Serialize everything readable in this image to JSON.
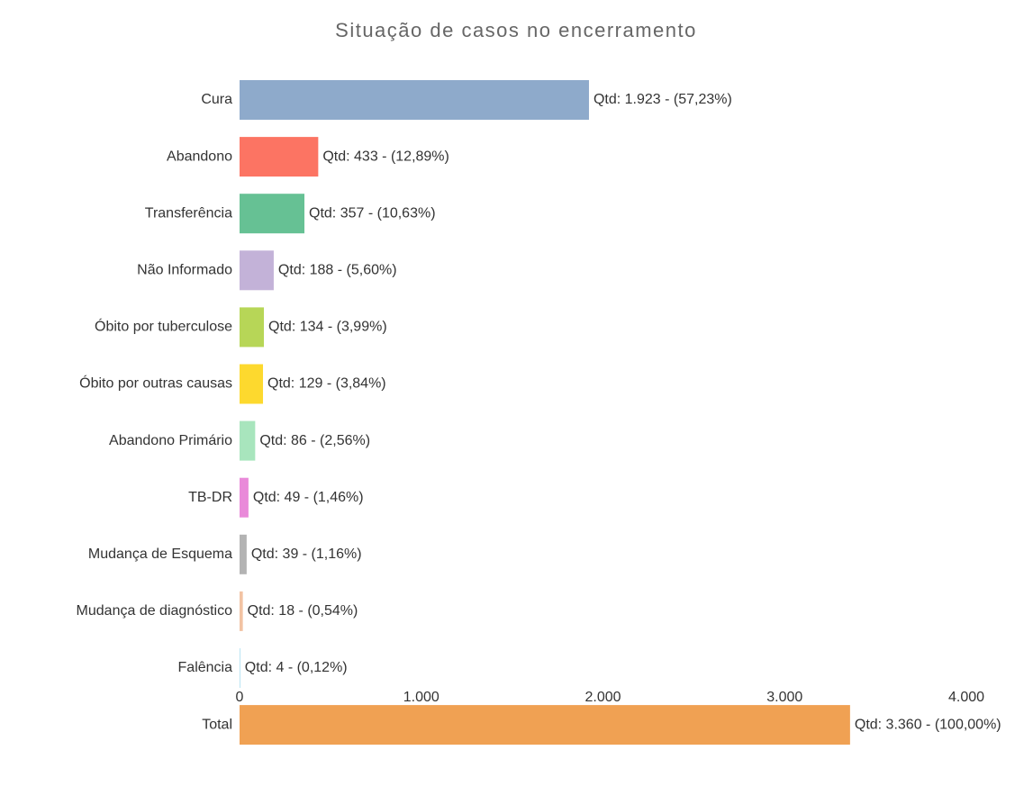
{
  "chart_data": {
    "type": "bar",
    "orientation": "horizontal",
    "title": "Situação de casos no encerramento",
    "categories": [
      "Cura",
      "Abandono",
      "Transferência",
      "Não Informado",
      "Óbito por tuberculose",
      "Óbito por outras causas",
      "Abandono Primário",
      "TB-DR",
      "Mudança de Esquema",
      "Mudança de diagnóstico",
      "Falência",
      "Total"
    ],
    "values": [
      1923,
      433,
      357,
      188,
      134,
      129,
      86,
      49,
      39,
      18,
      4,
      3360
    ],
    "value_labels": [
      "Qtd: 1.923 - (57,23%)",
      "Qtd: 433 - (12,89%)",
      "Qtd: 357 - (10,63%)",
      "Qtd: 188 - (5,60%)",
      "Qtd: 134 - (3,99%)",
      "Qtd: 129 - (3,84%)",
      "Qtd: 86 - (2,56%)",
      "Qtd: 49 - (1,46%)",
      "Qtd: 39 - (1,16%)",
      "Qtd: 18 - (0,54%)",
      "Qtd: 4 - (0,12%)",
      "Qtd: 3.360 - (100,00%)"
    ],
    "colors": [
      "#8eaacb",
      "#fc7463",
      "#66c194",
      "#c3b2d8",
      "#b7d657",
      "#fdd92e",
      "#a8e5bd",
      "#e98ad9",
      "#b3b3b3",
      "#f2c3a3",
      "#a9dff0",
      "#f0a153"
    ],
    "xlim": [
      0,
      4000
    ],
    "xticks": [
      0,
      {
        "value": 1000,
        "label": "1.000"
      },
      {
        "value": 2000,
        "label": "2.000"
      },
      {
        "value": 3000,
        "label": "3.000"
      },
      {
        "value": 4000,
        "label": "4.000"
      }
    ],
    "grid": false
  }
}
